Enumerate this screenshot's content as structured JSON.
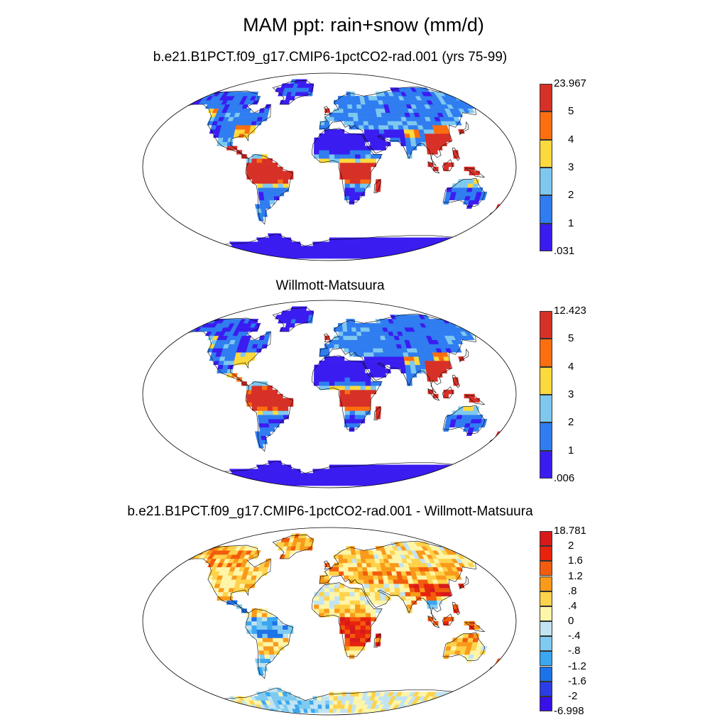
{
  "title": "MAM ppt: rain+snow (mm/d)",
  "panels": [
    {
      "title": "b.e21.B1PCT.f09_g17.CMIP6-1pctCO2-rad.001 (yrs 75-99)",
      "colorbar": {
        "labels_top_to_bottom": [
          "23.967",
          "5",
          "4",
          "3",
          "2",
          "1",
          ".031"
        ],
        "colors_top_to_bottom": [
          "#d73027",
          "#fc6e0f",
          "#fdd93c",
          "#7ec8f0",
          "#2f7df0",
          "#3a1cf0"
        ]
      }
    },
    {
      "title": "Willmott-Matsuura",
      "colorbar": {
        "labels_top_to_bottom": [
          "12.423",
          "5",
          "4",
          "3",
          "2",
          "1",
          ".006"
        ],
        "colors_top_to_bottom": [
          "#d73027",
          "#fc6e0f",
          "#fdd93c",
          "#7ec8f0",
          "#2f7df0",
          "#3a1cf0"
        ]
      }
    },
    {
      "title": "b.e21.B1PCT.f09_g17.CMIP6-1pctCO2-rad.001 - Willmott-Matsuura",
      "colorbar": {
        "labels_top_to_bottom": [
          "18.781",
          "2",
          "1.6",
          "1.2",
          ".8",
          ".4",
          "0",
          "-.4",
          "-.8",
          "-1.2",
          "-1.6",
          "-2",
          "-6.998"
        ],
        "colors_top_to_bottom": [
          "#d7191c",
          "#e8230d",
          "#f25c0c",
          "#f99a1a",
          "#fed24a",
          "#fef5a8",
          "#c2e4f2",
          "#7fcaf0",
          "#3aa7f0",
          "#1c73e8",
          "#2a3ee8",
          "#3a10e8"
        ]
      }
    }
  ]
}
